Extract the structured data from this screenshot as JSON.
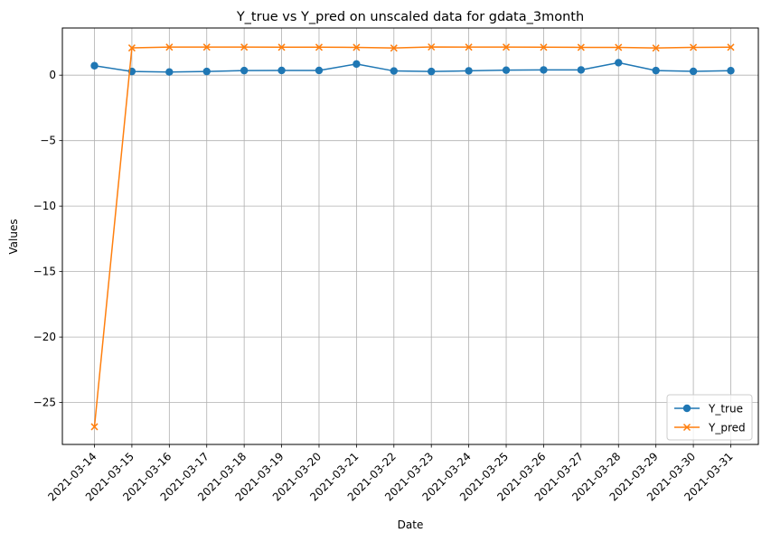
{
  "chart_data": {
    "type": "line",
    "title": "Y_true vs Y_pred on unscaled data for gdata_3month",
    "xlabel": "Date",
    "ylabel": "Values",
    "x": [
      "2021-03-14",
      "2021-03-15",
      "2021-03-16",
      "2021-03-17",
      "2021-03-18",
      "2021-03-19",
      "2021-03-20",
      "2021-03-21",
      "2021-03-22",
      "2021-03-23",
      "2021-03-24",
      "2021-03-25",
      "2021-03-26",
      "2021-03-27",
      "2021-03-28",
      "2021-03-29",
      "2021-03-30",
      "2021-03-31"
    ],
    "ylim": [
      -28.2,
      3.6
    ],
    "yticks": [
      0,
      -5,
      -10,
      -15,
      -20,
      -25
    ],
    "yticklabels": [
      "0",
      "−5",
      "−10",
      "−15",
      "−20",
      "−25"
    ],
    "grid": true,
    "legend_position": "lower-right",
    "series": [
      {
        "name": "Y_true",
        "color": "#1f77b4",
        "marker": "circle",
        "values": [
          0.72,
          0.28,
          0.24,
          0.28,
          0.35,
          0.36,
          0.36,
          0.85,
          0.32,
          0.28,
          0.33,
          0.38,
          0.4,
          0.4,
          0.95,
          0.35,
          0.29,
          0.34
        ]
      },
      {
        "name": "Y_pred",
        "color": "#ff7f0e",
        "marker": "x",
        "values": [
          -26.85,
          2.08,
          2.14,
          2.14,
          2.14,
          2.13,
          2.13,
          2.12,
          2.07,
          2.15,
          2.14,
          2.14,
          2.13,
          2.12,
          2.12,
          2.07,
          2.12,
          2.13
        ]
      }
    ]
  }
}
